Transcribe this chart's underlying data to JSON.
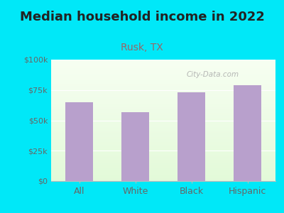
{
  "title": "Median household income in 2022",
  "subtitle": "Rusk, TX",
  "categories": [
    "All",
    "White",
    "Black",
    "Hispanic"
  ],
  "values": [
    65000,
    57000,
    73000,
    79000
  ],
  "bar_color": "#b8a0cc",
  "title_fontsize": 13,
  "subtitle_fontsize": 10,
  "subtitle_color": "#996666",
  "title_color": "#222222",
  "tick_label_color": "#666666",
  "background_outer": "#00e8f8",
  "ylim": [
    0,
    100000
  ],
  "yticks": [
    0,
    25000,
    50000,
    75000,
    100000
  ],
  "ytick_labels": [
    "$0",
    "$25k",
    "$50k",
    "$75k",
    "$100k"
  ],
  "watermark": "City-Data.com",
  "bar_width": 0.5
}
